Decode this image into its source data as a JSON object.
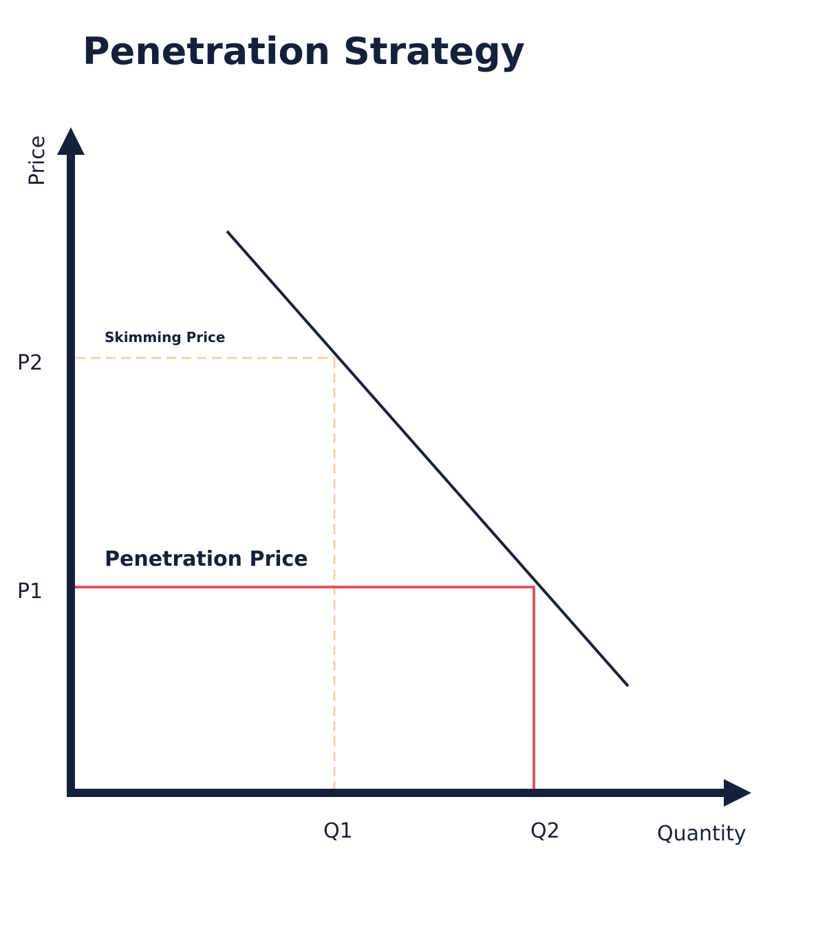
{
  "title": "Penetration Strategy",
  "axes": {
    "y_label": "Price",
    "x_label": "Quantity",
    "y_ticks": [
      "P1",
      "P2"
    ],
    "x_ticks": [
      "Q1",
      "Q2"
    ]
  },
  "annotations": {
    "skimming": "Skimming Price",
    "penetration": "Penetration Price"
  },
  "colors": {
    "axis": "#14213d",
    "demand_line": "#14213d",
    "skimming_guide": "#fbcfa0",
    "penetration_guide": "#e8505b",
    "text": "#14213d",
    "background": "#ffffff"
  }
}
